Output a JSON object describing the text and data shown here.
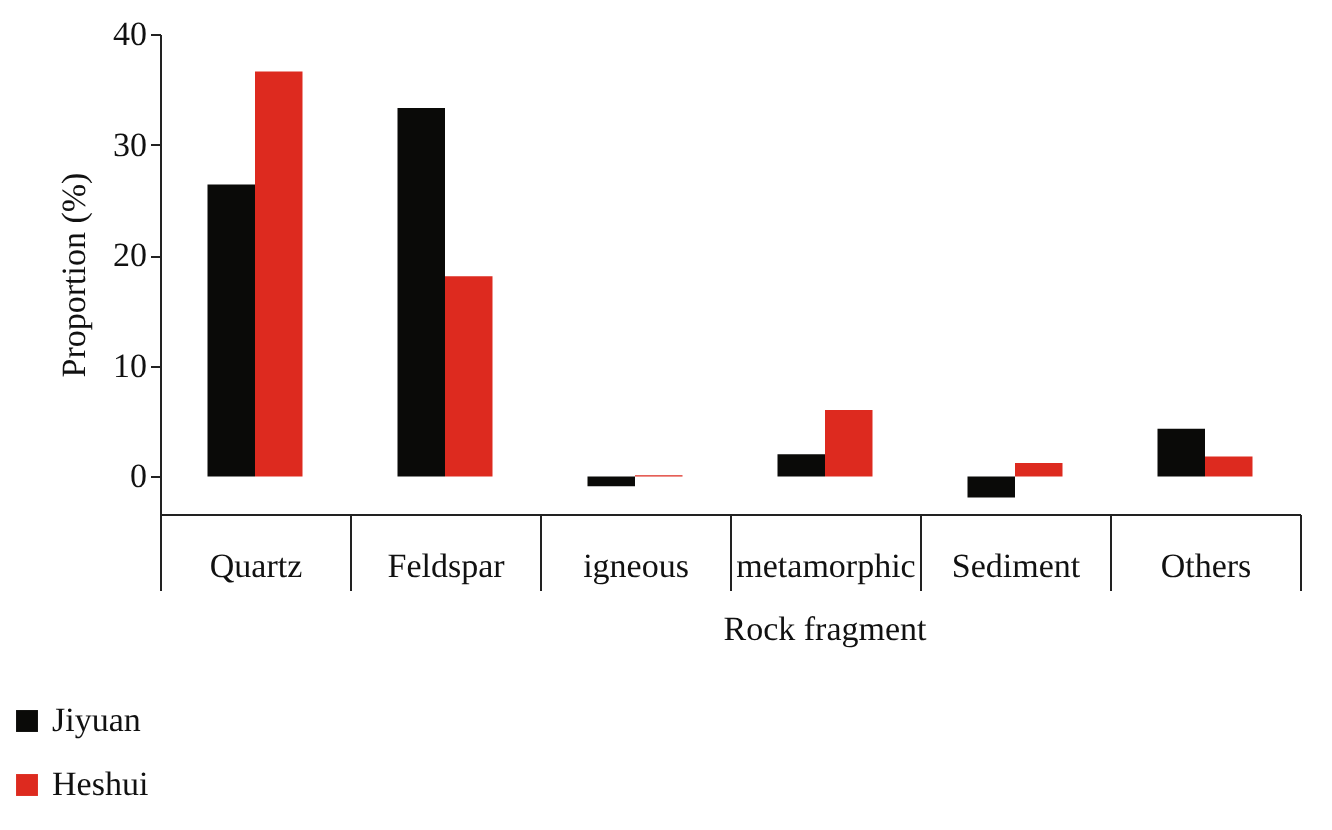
{
  "chart_data": {
    "type": "bar",
    "ylabel": "Proportion (%)",
    "categories": [
      "Quartz",
      "Feldspar",
      "igneous",
      "metamorphic",
      "Sediment",
      "Others"
    ],
    "series": [
      {
        "name": "Jiyuan",
        "color": "#0a0a08",
        "values": [
          26.4,
          33.3,
          -0.9,
          2.0,
          -1.9,
          4.3
        ]
      },
      {
        "name": "Heshui",
        "color": "#dd2a1f",
        "values": [
          36.6,
          18.1,
          0.1,
          6.0,
          1.2,
          1.8
        ]
      }
    ],
    "ylim": [
      -3.4,
      40
    ],
    "yticks": [
      0,
      10,
      20,
      30,
      40
    ],
    "grid": false,
    "legend": "bottom left",
    "annotations": [
      "Rock fragment"
    ]
  }
}
